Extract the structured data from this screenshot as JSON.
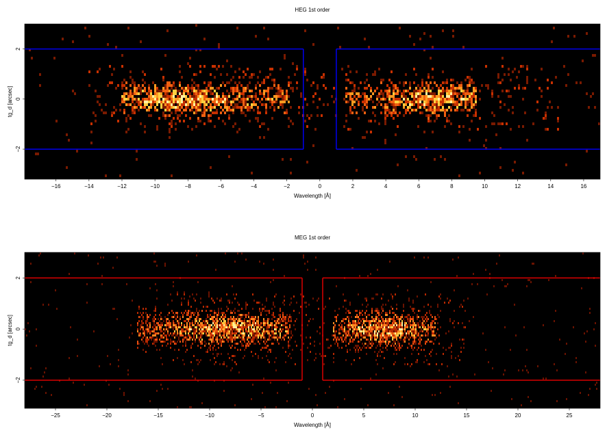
{
  "chart_data": [
    {
      "type": "heatmap",
      "title": "HEG 1st order",
      "xlabel": "Wavelength [Å]",
      "ylabel": "tg_d [arcsec]",
      "xlim": [
        -17.9,
        17.0
      ],
      "ylim": [
        -3.2,
        3.0
      ],
      "xticks": [
        -16,
        -14,
        -12,
        -10,
        -8,
        -6,
        -4,
        -2,
        0,
        2,
        4,
        6,
        8,
        10,
        12,
        14,
        16
      ],
      "xtick_labels": [
        "−16",
        "−14",
        "−12",
        "−10",
        "−8",
        "−6",
        "−4",
        "−2",
        "0",
        "2",
        "4",
        "6",
        "8",
        "10",
        "12",
        "14",
        "16"
      ],
      "yticks": [
        -2,
        0,
        2
      ],
      "ytick_labels": [
        "−2",
        "0",
        "2"
      ],
      "background": "#000000",
      "colormap": [
        "#7a1a00",
        "#c83000",
        "#f06010",
        "#ff9a20",
        "#ffd040",
        "#fff0a0"
      ],
      "extraction_regions": [
        {
          "x": [
            -17.9,
            -1.0
          ],
          "y": [
            -2.0,
            2.0
          ],
          "color": "#0000ee"
        },
        {
          "x": [
            1.0,
            17.0
          ],
          "y": [
            -2.0,
            2.0
          ],
          "color": "#0000ee"
        }
      ],
      "bright_bands": [
        {
          "x": [
            -12.0,
            -1.8
          ],
          "y": [
            -0.9,
            0.9
          ],
          "peak_x": -8.0
        },
        {
          "x": [
            1.5,
            9.5
          ],
          "y": [
            -0.9,
            0.9
          ],
          "peak_x": 7.0
        }
      ],
      "grid": false
    },
    {
      "type": "heatmap",
      "title": "MEG 1st order",
      "xlabel": "Wavelength [Å]",
      "ylabel": "tg_d [arcsec]",
      "xlim": [
        -28.0,
        28.0
      ],
      "ylim": [
        -3.1,
        3.0
      ],
      "xticks": [
        -25,
        -20,
        -15,
        -10,
        -5,
        0,
        5,
        10,
        15,
        20,
        25
      ],
      "xtick_labels": [
        "−25",
        "−20",
        "−15",
        "−10",
        "−5",
        "0",
        "5",
        "10",
        "15",
        "20",
        "25"
      ],
      "yticks": [
        -2,
        0,
        2
      ],
      "ytick_labels": [
        "−2",
        "0",
        "2"
      ],
      "background": "#000000",
      "colormap": [
        "#6a1200",
        "#b82800",
        "#e85010",
        "#ff8a20",
        "#ffc840",
        "#fff0a0"
      ],
      "extraction_regions": [
        {
          "x": [
            -28.0,
            -1.0
          ],
          "y": [
            -2.0,
            2.0
          ],
          "color": "#dd0000"
        },
        {
          "x": [
            1.0,
            28.0
          ],
          "y": [
            -2.0,
            2.0
          ],
          "color": "#dd0000"
        }
      ],
      "bright_bands": [
        {
          "x": [
            -17.0,
            -2.0
          ],
          "y": [
            -1.0,
            1.0
          ],
          "peak_x": -8.0
        },
        {
          "x": [
            2.0,
            12.0
          ],
          "y": [
            -1.0,
            1.0
          ],
          "peak_x": 7.0
        }
      ],
      "grid": false
    }
  ]
}
